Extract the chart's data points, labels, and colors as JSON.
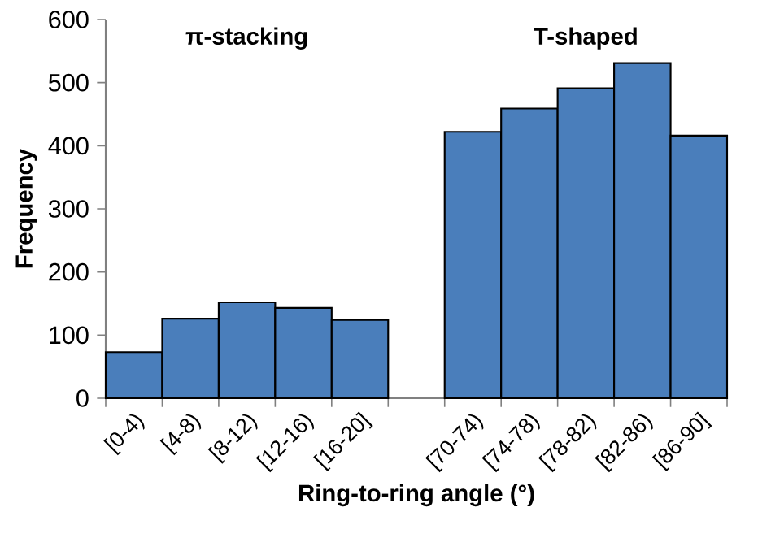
{
  "chart_data": {
    "type": "bar",
    "xlabel": "Ring-to-ring angle (°)",
    "ylabel": "Frequency",
    "categories": [
      "[0-4)",
      "[4-8)",
      "[8-12)",
      "[12-16)",
      "[16-20]",
      null,
      "[70-74)",
      "[74-78)",
      "[78-82)",
      "[82-86)",
      "[86-90]"
    ],
    "values": [
      73,
      126,
      152,
      143,
      124,
      null,
      422,
      459,
      491,
      531,
      416
    ],
    "color": "#4a7ebb",
    "ylim": [
      0,
      600
    ],
    "yticks": [
      0,
      100,
      200,
      300,
      400,
      500,
      600
    ],
    "annotations": [
      "π-stacking",
      "T-shaped"
    ]
  }
}
